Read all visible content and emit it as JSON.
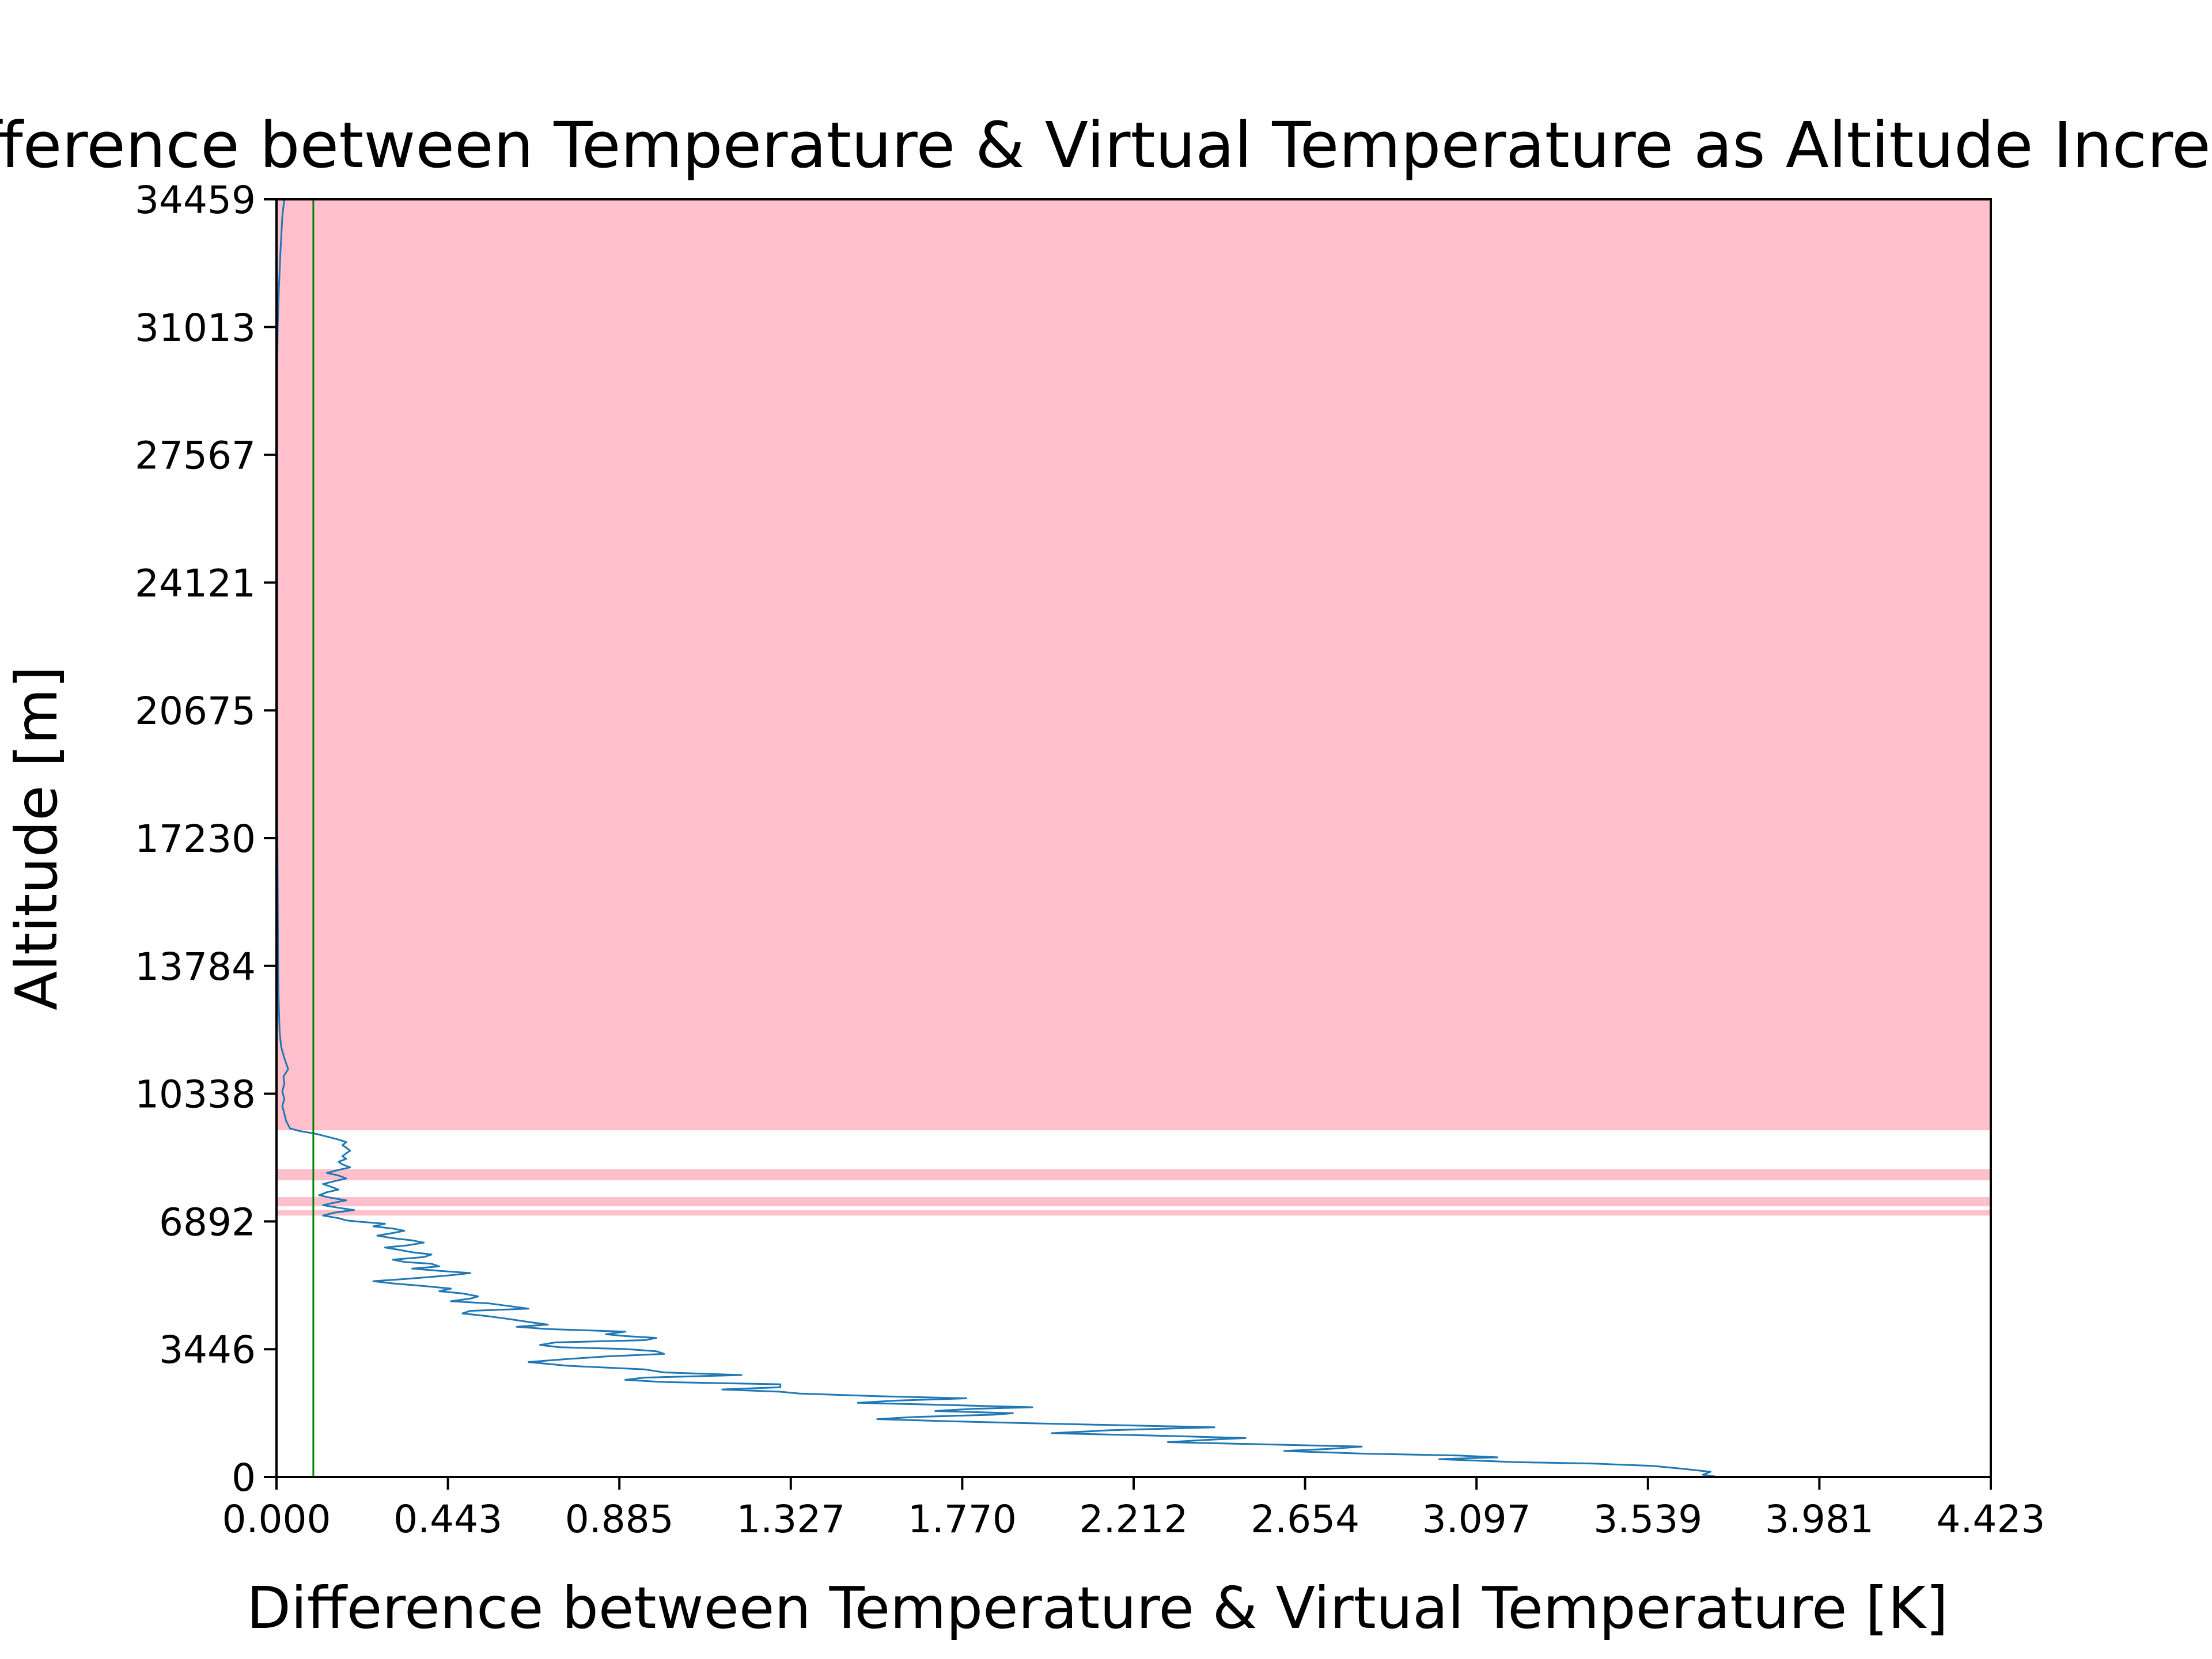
{
  "chart_data": {
    "type": "line",
    "title": "Difference between Temperature & Virtual Temperature as Altitude Increases",
    "xlabel": "Difference between Temperature & Virtual Temperature [K]",
    "ylabel": "Altitude [m]",
    "xlim": [
      0.0,
      4.423
    ],
    "ylim": [
      0,
      34459
    ],
    "x_ticks": [
      "0.000",
      "0.443",
      "0.885",
      "1.327",
      "1.770",
      "2.212",
      "2.654",
      "3.097",
      "3.539",
      "3.981",
      "4.423"
    ],
    "y_ticks": [
      "0",
      "3446",
      "6892",
      "10338",
      "13784",
      "17230",
      "20675",
      "24121",
      "27567",
      "31013",
      "34459"
    ],
    "grid": false,
    "colors": {
      "series": "#1f77b4",
      "threshold": "#008000",
      "shading": "#ffc0cb"
    },
    "threshold_line": {
      "x": 0.095
    },
    "shaded_altitude_bands": [
      {
        "y0": 9350,
        "y1": 34459
      },
      {
        "y0": 8000,
        "y1": 8300
      },
      {
        "y0": 7300,
        "y1": 7550
      },
      {
        "y0": 7050,
        "y1": 7200
      }
    ],
    "series": [
      {
        "points": [
          [
            3.72,
            0
          ],
          [
            3.68,
            60
          ],
          [
            3.7,
            140
          ],
          [
            3.62,
            230
          ],
          [
            3.55,
            300
          ],
          [
            3.4,
            360
          ],
          [
            3.2,
            400
          ],
          [
            3.0,
            480
          ],
          [
            3.15,
            530
          ],
          [
            3.05,
            580
          ],
          [
            2.8,
            630
          ],
          [
            2.6,
            700
          ],
          [
            2.72,
            760
          ],
          [
            2.8,
            820
          ],
          [
            2.55,
            880
          ],
          [
            2.3,
            940
          ],
          [
            2.4,
            1000
          ],
          [
            2.5,
            1050
          ],
          [
            2.25,
            1120
          ],
          [
            2.0,
            1180
          ],
          [
            2.15,
            1260
          ],
          [
            2.42,
            1340
          ],
          [
            2.2,
            1390
          ],
          [
            1.98,
            1440
          ],
          [
            1.75,
            1500
          ],
          [
            1.55,
            1560
          ],
          [
            1.65,
            1620
          ],
          [
            1.85,
            1680
          ],
          [
            1.9,
            1720
          ],
          [
            1.7,
            1780
          ],
          [
            1.8,
            1840
          ],
          [
            1.95,
            1880
          ],
          [
            1.7,
            1950
          ],
          [
            1.5,
            2000
          ],
          [
            1.6,
            2060
          ],
          [
            1.78,
            2120
          ],
          [
            1.55,
            2180
          ],
          [
            1.35,
            2250
          ],
          [
            1.3,
            2300
          ],
          [
            1.15,
            2360
          ],
          [
            1.3,
            2420
          ],
          [
            1.3,
            2500
          ],
          [
            1.0,
            2560
          ],
          [
            0.9,
            2620
          ],
          [
            0.95,
            2680
          ],
          [
            1.2,
            2750
          ],
          [
            1.0,
            2820
          ],
          [
            0.95,
            2900
          ],
          [
            0.75,
            3000
          ],
          [
            0.65,
            3100
          ],
          [
            0.75,
            3180
          ],
          [
            0.85,
            3250
          ],
          [
            1.0,
            3320
          ],
          [
            0.98,
            3390
          ],
          [
            0.9,
            3450
          ],
          [
            0.73,
            3500
          ],
          [
            0.68,
            3560
          ],
          [
            0.72,
            3630
          ],
          [
            0.95,
            3690
          ],
          [
            0.98,
            3750
          ],
          [
            0.9,
            3800
          ],
          [
            0.85,
            3850
          ],
          [
            0.9,
            3920
          ],
          [
            0.7,
            3990
          ],
          [
            0.62,
            4050
          ],
          [
            0.7,
            4110
          ],
          [
            0.65,
            4180
          ],
          [
            0.6,
            4260
          ],
          [
            0.55,
            4330
          ],
          [
            0.48,
            4410
          ],
          [
            0.5,
            4480
          ],
          [
            0.65,
            4540
          ],
          [
            0.6,
            4610
          ],
          [
            0.55,
            4680
          ],
          [
            0.45,
            4740
          ],
          [
            0.5,
            4810
          ],
          [
            0.52,
            4870
          ],
          [
            0.48,
            4950
          ],
          [
            0.42,
            5010
          ],
          [
            0.45,
            5080
          ],
          [
            0.38,
            5150
          ],
          [
            0.3,
            5220
          ],
          [
            0.25,
            5280
          ],
          [
            0.32,
            5330
          ],
          [
            0.38,
            5380
          ],
          [
            0.45,
            5440
          ],
          [
            0.5,
            5500
          ],
          [
            0.42,
            5560
          ],
          [
            0.35,
            5620
          ],
          [
            0.42,
            5680
          ],
          [
            0.4,
            5750
          ],
          [
            0.33,
            5800
          ],
          [
            0.3,
            5860
          ],
          [
            0.38,
            5930
          ],
          [
            0.4,
            6000
          ],
          [
            0.35,
            6060
          ],
          [
            0.32,
            6120
          ],
          [
            0.28,
            6190
          ],
          [
            0.34,
            6250
          ],
          [
            0.38,
            6320
          ],
          [
            0.35,
            6380
          ],
          [
            0.3,
            6440
          ],
          [
            0.26,
            6510
          ],
          [
            0.3,
            6580
          ],
          [
            0.33,
            6640
          ],
          [
            0.3,
            6700
          ],
          [
            0.25,
            6760
          ],
          [
            0.28,
            6830
          ],
          [
            0.22,
            6880
          ],
          [
            0.18,
            6920
          ],
          [
            0.16,
            6980
          ],
          [
            0.12,
            7050
          ],
          [
            0.15,
            7130
          ],
          [
            0.2,
            7200
          ],
          [
            0.16,
            7260
          ],
          [
            0.12,
            7330
          ],
          [
            0.15,
            7400
          ],
          [
            0.18,
            7460
          ],
          [
            0.14,
            7530
          ],
          [
            0.11,
            7600
          ],
          [
            0.13,
            7680
          ],
          [
            0.16,
            7750
          ],
          [
            0.14,
            7830
          ],
          [
            0.12,
            7900
          ],
          [
            0.15,
            7980
          ],
          [
            0.18,
            8050
          ],
          [
            0.16,
            8130
          ],
          [
            0.13,
            8200
          ],
          [
            0.16,
            8280
          ],
          [
            0.19,
            8350
          ],
          [
            0.17,
            8430
          ],
          [
            0.16,
            8500
          ],
          [
            0.18,
            8580
          ],
          [
            0.17,
            8650
          ],
          [
            0.18,
            8730
          ],
          [
            0.19,
            8800
          ],
          [
            0.18,
            8880
          ],
          [
            0.17,
            8950
          ],
          [
            0.18,
            9030
          ],
          [
            0.16,
            9100
          ],
          [
            0.13,
            9180
          ],
          [
            0.1,
            9260
          ],
          [
            0.06,
            9330
          ],
          [
            0.035,
            9400
          ],
          [
            0.025,
            9600
          ],
          [
            0.02,
            9800
          ],
          [
            0.015,
            10000
          ],
          [
            0.02,
            10200
          ],
          [
            0.015,
            10400
          ],
          [
            0.02,
            10600
          ],
          [
            0.018,
            10800
          ],
          [
            0.03,
            11000
          ],
          [
            0.02,
            11300
          ],
          [
            0.012,
            11600
          ],
          [
            0.008,
            12000
          ],
          [
            0.005,
            13000
          ],
          [
            0.004,
            14000
          ],
          [
            0.003,
            16000
          ],
          [
            0.002,
            18000
          ],
          [
            0.002,
            20000
          ],
          [
            0.002,
            22000
          ],
          [
            0.002,
            24000
          ],
          [
            0.002,
            26000
          ],
          [
            0.002,
            28000
          ],
          [
            0.002,
            30000
          ],
          [
            0.003,
            31000
          ],
          [
            0.006,
            32000
          ],
          [
            0.01,
            33000
          ],
          [
            0.015,
            34000
          ],
          [
            0.02,
            34459
          ]
        ]
      }
    ]
  }
}
